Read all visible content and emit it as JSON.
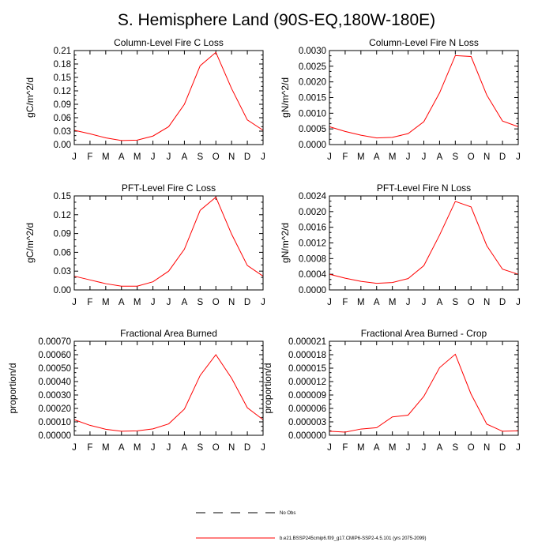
{
  "figure_title": "S. Hemisphere Land (90S-EQ,180W-180E)",
  "legend": {
    "obs_label": "No Obs",
    "model_label": "b.e21.BSSP245cmip6.f09_g17.CMIP6-SSP2-4.5.101 (yrs 2075-2099)",
    "obs_color": "#000000",
    "model_color": "#ff0000"
  },
  "chart_data": [
    {
      "type": "line",
      "title": "Column-Level Fire C Loss",
      "ylabel": "gC/m^2/d",
      "categories": [
        "J",
        "F",
        "M",
        "A",
        "M",
        "J",
        "J",
        "A",
        "S",
        "O",
        "N",
        "D",
        "J"
      ],
      "ylim": [
        0,
        0.21
      ],
      "yticks": [
        "0.00",
        "0.03",
        "0.06",
        "0.09",
        "0.12",
        "0.15",
        "0.18",
        "0.21"
      ],
      "series": [
        {
          "name": "b.e21.BSSP245cmip6.f09_g17.CMIP6-SSP2-4.5.101",
          "color": "#ff0000",
          "values": [
            0.032,
            0.024,
            0.015,
            0.009,
            0.01,
            0.019,
            0.04,
            0.09,
            0.176,
            0.206,
            0.125,
            0.055,
            0.032
          ]
        }
      ]
    },
    {
      "type": "line",
      "title": "Column-Level Fire N Loss",
      "ylabel": "gN/m^2/d",
      "categories": [
        "J",
        "F",
        "M",
        "A",
        "M",
        "J",
        "J",
        "A",
        "S",
        "O",
        "N",
        "D",
        "J"
      ],
      "ylim": [
        0,
        0.003
      ],
      "yticks": [
        "0.0000",
        "0.0005",
        "0.0010",
        "0.0015",
        "0.0020",
        "0.0025",
        "0.0030"
      ],
      "series": [
        {
          "name": "b.e21.BSSP245cmip6.f09_g17.CMIP6-SSP2-4.5.101",
          "color": "#ff0000",
          "values": [
            0.00057,
            0.00042,
            0.0003,
            0.00021,
            0.00023,
            0.00035,
            0.00073,
            0.00165,
            0.00284,
            0.00281,
            0.00158,
            0.00075,
            0.00057
          ]
        }
      ]
    },
    {
      "type": "line",
      "title": "PFT-Level Fire C Loss",
      "ylabel": "gC/m^2/d",
      "categories": [
        "J",
        "F",
        "M",
        "A",
        "M",
        "J",
        "J",
        "A",
        "S",
        "O",
        "N",
        "D",
        "J"
      ],
      "ylim": [
        0,
        0.15
      ],
      "yticks": [
        "0.00",
        "0.03",
        "0.06",
        "0.09",
        "0.12",
        "0.15"
      ],
      "series": [
        {
          "name": "b.e21.BSSP245cmip6.f09_g17.CMIP6-SSP2-4.5.101",
          "color": "#ff0000",
          "values": [
            0.022,
            0.016,
            0.01,
            0.006,
            0.006,
            0.013,
            0.03,
            0.065,
            0.127,
            0.148,
            0.089,
            0.039,
            0.022
          ]
        }
      ]
    },
    {
      "type": "line",
      "title": "PFT-Level Fire N Loss",
      "ylabel": "gN/m^2/d",
      "categories": [
        "J",
        "F",
        "M",
        "A",
        "M",
        "J",
        "J",
        "A",
        "S",
        "O",
        "N",
        "D",
        "J"
      ],
      "ylim": [
        0,
        0.0024
      ],
      "yticks": [
        "0.0000",
        "0.0004",
        "0.0008",
        "0.0012",
        "0.0016",
        "0.0020",
        "0.0024"
      ],
      "series": [
        {
          "name": "b.e21.BSSP245cmip6.f09_g17.CMIP6-SSP2-4.5.101",
          "color": "#ff0000",
          "values": [
            0.0004,
            0.0003,
            0.00022,
            0.00017,
            0.00019,
            0.00029,
            0.00062,
            0.0014,
            0.00226,
            0.00212,
            0.00113,
            0.00053,
            0.0004
          ]
        }
      ]
    },
    {
      "type": "line",
      "title": "Fractional Area Burned",
      "ylabel": "proportion/d",
      "categories": [
        "J",
        "F",
        "M",
        "A",
        "M",
        "J",
        "J",
        "A",
        "S",
        "O",
        "N",
        "D",
        "J"
      ],
      "ylim": [
        0,
        0.0007
      ],
      "yticks": [
        "0.00000",
        "0.00010",
        "0.00020",
        "0.00030",
        "0.00040",
        "0.00050",
        "0.00060",
        "0.00070"
      ],
      "series": [
        {
          "name": "b.e21.BSSP245cmip6.f09_g17.CMIP6-SSP2-4.5.101",
          "color": "#ff0000",
          "values": [
            0.000116,
            7.4e-05,
            4.5e-05,
            3e-05,
            3.3e-05,
            4.8e-05,
            8.5e-05,
            0.000195,
            0.000445,
            0.0006,
            0.000425,
            0.000205,
            0.000116
          ]
        }
      ]
    },
    {
      "type": "line",
      "title": "Fractional Area Burned - Crop",
      "ylabel": "proportion/d",
      "categories": [
        "J",
        "F",
        "M",
        "A",
        "M",
        "J",
        "J",
        "A",
        "S",
        "O",
        "N",
        "D",
        "J"
      ],
      "ylim": [
        0,
        2.1e-05
      ],
      "yticks": [
        "0.000000",
        "0.000003",
        "0.000006",
        "0.000009",
        "0.000012",
        "0.000015",
        "0.000018",
        "0.000021"
      ],
      "series": [
        {
          "name": "b.e21.BSSP245cmip6.f09_g17.CMIP6-SSP2-4.5.101",
          "color": "#ff0000",
          "values": [
            9e-07,
            7e-07,
            1.4e-06,
            1.7e-06,
            4.1e-06,
            4.5e-06,
            8.7e-06,
            1.51e-05,
            1.81e-05,
            9.2e-06,
            2.5e-06,
            9e-07,
            1e-06
          ]
        }
      ]
    }
  ]
}
